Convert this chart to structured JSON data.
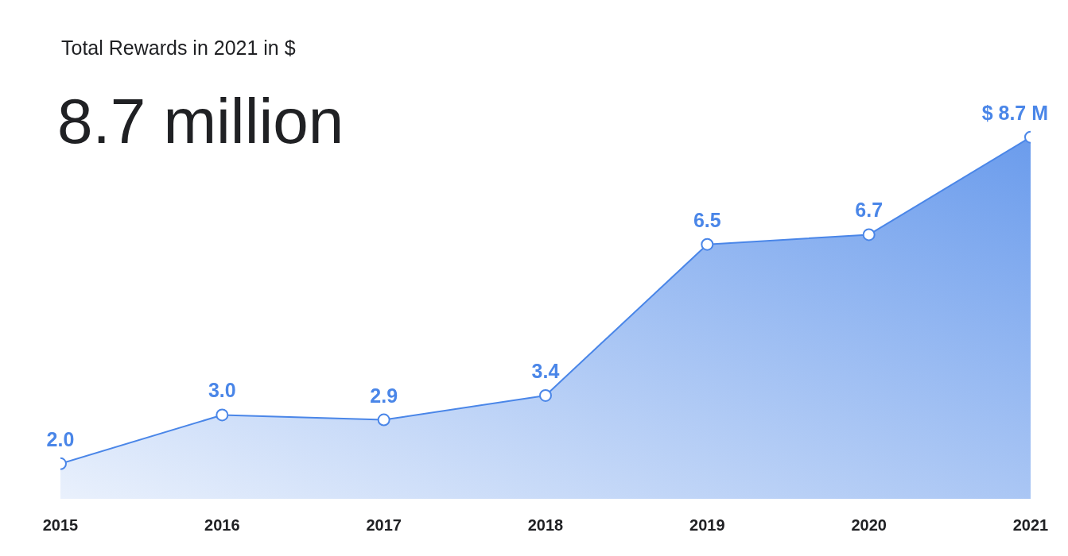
{
  "chart_data": {
    "type": "area",
    "title": "Total Rewards in 2021 in $",
    "subtitle": "8.7 million",
    "categories": [
      "2015",
      "2016",
      "2017",
      "2018",
      "2019",
      "2020",
      "2021"
    ],
    "series": [
      {
        "color": "#4a86e8",
        "values": [
          2.0,
          3.0,
          2.9,
          3.4,
          6.5,
          6.7,
          8.7
        ],
        "value_labels": [
          "2.0",
          "3.0",
          "2.9",
          "3.4",
          "6.5",
          "6.7",
          "$ 8.7 M"
        ]
      }
    ],
    "marker": "circle"
  }
}
